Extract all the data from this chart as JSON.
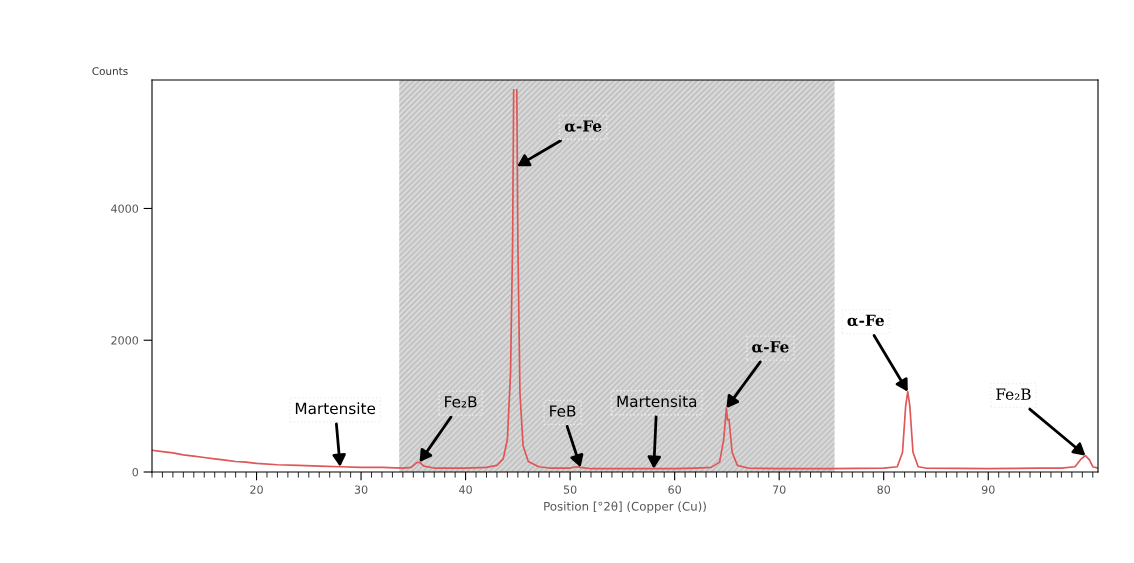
{
  "chart_data": {
    "type": "line",
    "xlabel": "Position [°2θ] (Copper (Cu))",
    "ylabel": "Counts",
    "xlim": [
      10,
      100.5
    ],
    "xticks": [
      20,
      30,
      40,
      50,
      60,
      70,
      80,
      90
    ],
    "ylim": [
      0,
      5950
    ],
    "yticks": [
      0,
      2000,
      4000
    ],
    "grid": false,
    "legend": false,
    "series": [
      {
        "color": "#e05555",
        "x": [
          10,
          11,
          12,
          13,
          14,
          15,
          16,
          17,
          18,
          19,
          20,
          22,
          24,
          26,
          28,
          30,
          32,
          34,
          34.8,
          35.3,
          35.6,
          36,
          37,
          38,
          40,
          42,
          43,
          43.6,
          44.0,
          44.3,
          44.5,
          44.6,
          44.65,
          44.85,
          44.9,
          45.0,
          45.2,
          45.5,
          46,
          47,
          48,
          50,
          50.6,
          51,
          52,
          55,
          58,
          60,
          62,
          63.5,
          64.3,
          64.7,
          64.95,
          65.05,
          65.2,
          65.5,
          66,
          67,
          70,
          75,
          80,
          81.3,
          81.8,
          82.1,
          82.3,
          82.5,
          82.8,
          83.3,
          84,
          90,
          95,
          97,
          98.3,
          98.9,
          99.3,
          99.7,
          100,
          100.5
        ],
        "values": [
          330,
          310,
          290,
          260,
          240,
          220,
          200,
          180,
          160,
          150,
          130,
          110,
          100,
          90,
          80,
          70,
          70,
          60,
          70,
          140,
          150,
          90,
          60,
          60,
          60,
          70,
          100,
          200,
          500,
          1500,
          3500,
          5800,
          null,
          null,
          5800,
          3500,
          1200,
          400,
          160,
          80,
          60,
          60,
          80,
          70,
          50,
          50,
          50,
          50,
          60,
          70,
          150,
          500,
          970,
          790,
          800,
          300,
          100,
          60,
          50,
          50,
          60,
          80,
          300,
          1000,
          1220,
          1000,
          300,
          80,
          60,
          50,
          60,
          60,
          80,
          200,
          250,
          180,
          80,
          60
        ]
      }
    ],
    "bands": [
      {
        "axis": "x",
        "from": 33.65,
        "to": 75.3,
        "color": "#d9d9d9"
      }
    ],
    "annotations": [
      {
        "text": "Martensite",
        "x": 28,
        "y": 80
      },
      {
        "text": "Fe₂B",
        "x": 35.6,
        "y": 150
      },
      {
        "text": "α-Fe",
        "x": 44.93,
        "y": 4640
      },
      {
        "text": "FeB",
        "x": 51,
        "y": 70
      },
      {
        "text": "Martensita",
        "x": 58,
        "y": 50
      },
      {
        "text": "α-Fe",
        "x": 64.95,
        "y": 970
      },
      {
        "text": "α-Fe",
        "x": 82.3,
        "y": 1220
      },
      {
        "text": "Fe₂B",
        "x": 99.3,
        "y": 250
      }
    ]
  }
}
